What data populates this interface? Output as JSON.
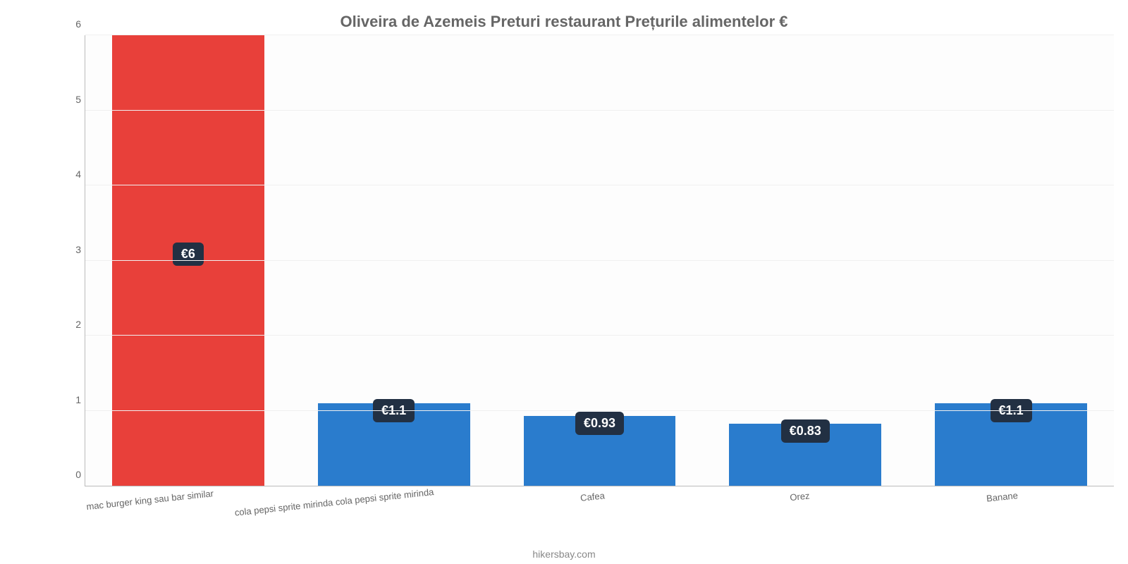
{
  "chart": {
    "type": "bar",
    "title": "Oliveira de Azemeis Preturi restaurant Prețurile alimentelor €",
    "title_fontsize": 22,
    "title_color": "#666666",
    "background_color": "#ffffff",
    "plot_background": "#fdfdfd",
    "grid_color": "#f0f0f0",
    "axis_color": "#bbbbbb",
    "label_color": "#666666",
    "label_fontsize": 13,
    "ylim": [
      0,
      6
    ],
    "ytick_step": 1,
    "yticks": [
      "0",
      "1",
      "2",
      "3",
      "4",
      "5",
      "6"
    ],
    "bar_width_pct": 74,
    "categories": [
      "mac burger king sau bar similar",
      "cola pepsi sprite mirinda cola pepsi sprite mirinda",
      "Cafea",
      "Orez",
      "Banane"
    ],
    "values": [
      6,
      1.1,
      0.93,
      0.83,
      1.1
    ],
    "value_labels": [
      "€6",
      "€1.1",
      "€0.93",
      "€0.83",
      "€1.1"
    ],
    "bar_colors": [
      "#e8403a",
      "#2a7ccd",
      "#2a7ccd",
      "#2a7ccd",
      "#2a7ccd"
    ],
    "badge_bg": "#223043",
    "badge_text_color": "#ffffff",
    "badge_fontsize": 18,
    "credit": "hikersbay.com",
    "credit_color": "#888888"
  }
}
